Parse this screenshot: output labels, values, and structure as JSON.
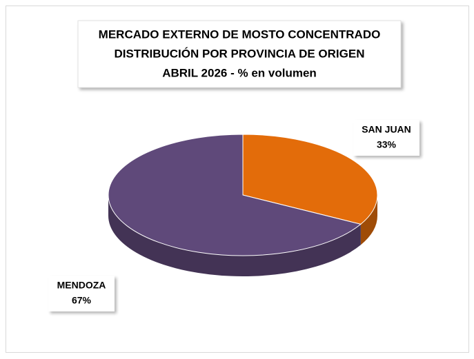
{
  "chart_data": {
    "type": "pie",
    "title": [
      "MERCADO EXTERNO DE MOSTO CONCENTRADO",
      "DISTRIBUCIÓN POR PROVINCIA DE ORIGEN",
      "ABRIL 2026 - % en volumen"
    ],
    "categories": [
      "SAN JUAN",
      "MENDOZA"
    ],
    "values": [
      33,
      67
    ],
    "value_labels": [
      "33%",
      "67%"
    ],
    "colors": [
      "#e36c0a",
      "#5f497a"
    ]
  }
}
